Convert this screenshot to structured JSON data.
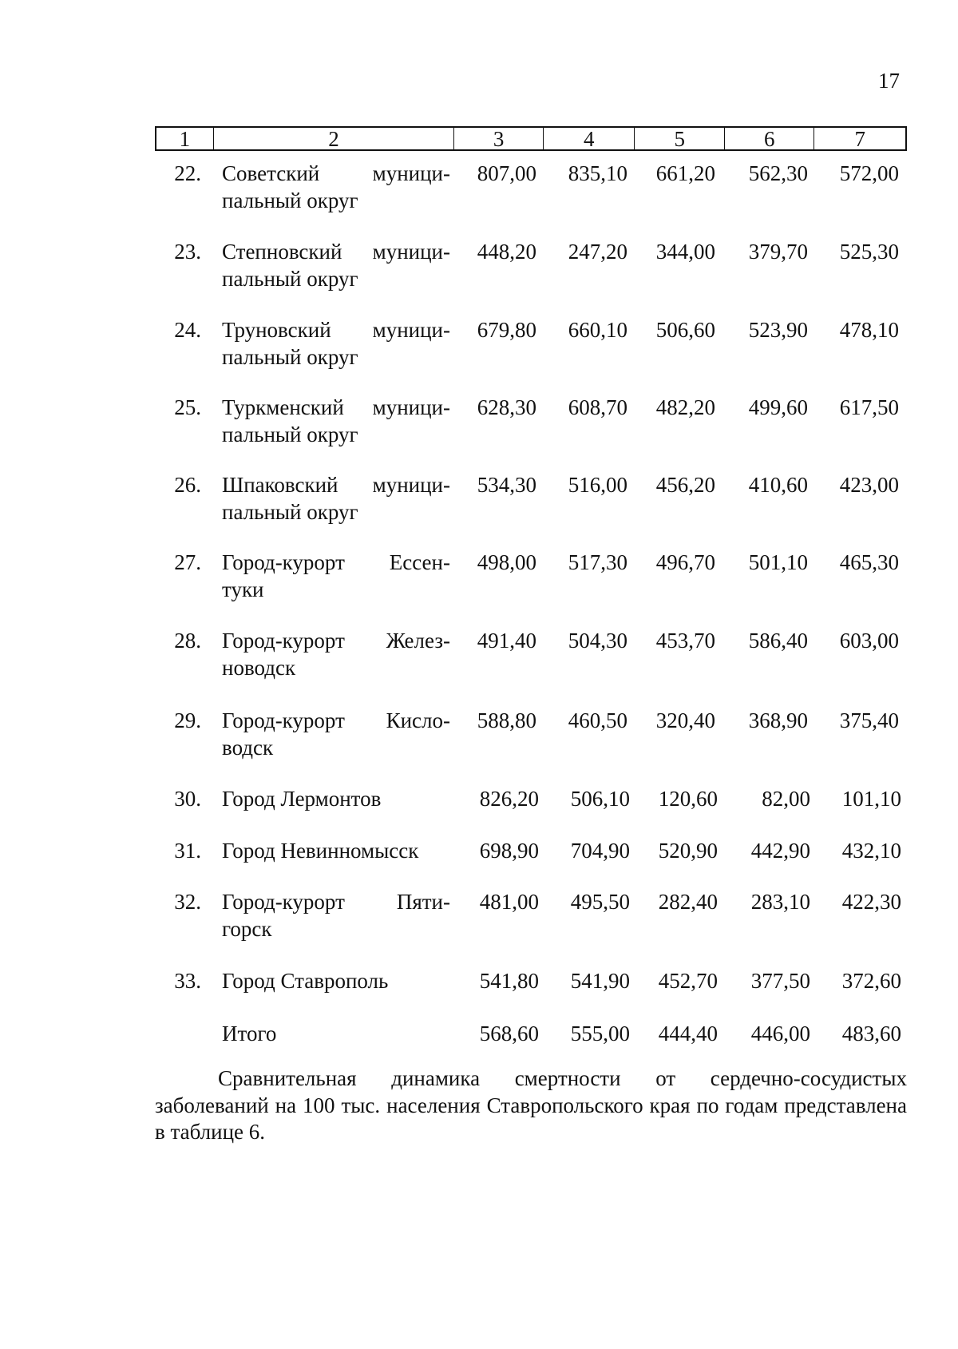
{
  "page_number": "17",
  "table": {
    "header": [
      "1",
      "2",
      "3",
      "4",
      "5",
      "6",
      "7"
    ],
    "rows": [
      {
        "num": "22.",
        "name": [
          "Советский муници-",
          "пальный округ"
        ],
        "values": [
          "807,00",
          "835,10",
          "661,20",
          "562,30",
          "572,00"
        ]
      },
      {
        "num": "23.",
        "name": [
          "Степновский муници-",
          "пальный округ"
        ],
        "values": [
          "448,20",
          "247,20",
          "344,00",
          "379,70",
          "525,30"
        ]
      },
      {
        "num": "24.",
        "name": [
          "Труновский муници-",
          "пальный округ"
        ],
        "values": [
          "679,80",
          "660,10",
          "506,60",
          "523,90",
          "478,10"
        ]
      },
      {
        "num": "25.",
        "name": [
          "Туркменский муници-",
          "пальный округ"
        ],
        "values": [
          "628,30",
          "608,70",
          "482,20",
          "499,60",
          "617,50"
        ]
      },
      {
        "num": "26.",
        "name": [
          "Шпаковский муници-",
          "пальный округ"
        ],
        "values": [
          "534,30",
          "516,00",
          "456,20",
          "410,60",
          "423,00"
        ]
      },
      {
        "num": "27.",
        "name": [
          "Город-курорт Ессен-",
          "туки"
        ],
        "values": [
          "498,00",
          "517,30",
          "496,70",
          "501,10",
          "465,30"
        ]
      },
      {
        "num": "28.",
        "name": [
          "Город-курорт Желез-",
          "новодск"
        ],
        "values": [
          "491,40",
          "504,30",
          "453,70",
          "586,40",
          "603,00"
        ]
      },
      {
        "num": "29.",
        "name": [
          "Город-курорт Кисло-",
          "водск"
        ],
        "values": [
          "588,80",
          "460,50",
          "320,40",
          "368,90",
          "375,40"
        ]
      },
      {
        "num": "30.",
        "name": [
          "Город Лермонтов"
        ],
        "values": [
          "826,20",
          "506,10",
          "120,60",
          "82,00",
          "101,10"
        ]
      },
      {
        "num": "31.",
        "name": [
          "Город Невинномысск"
        ],
        "values": [
          "698,90",
          "704,90",
          "520,90",
          "442,90",
          "432,10"
        ]
      },
      {
        "num": "32.",
        "name": [
          "Город-курорт Пяти-",
          "горск"
        ],
        "values": [
          "481,00",
          "495,50",
          "282,40",
          "283,10",
          "422,30"
        ]
      },
      {
        "num": "33.",
        "name": [
          "Город Ставрополь"
        ],
        "values": [
          "541,80",
          "541,90",
          "452,70",
          "377,50",
          "372,60"
        ]
      },
      {
        "num": "",
        "name": [
          "Итого"
        ],
        "values": [
          "568,60",
          "555,00",
          "444,40",
          "446,00",
          "483,60"
        ]
      }
    ]
  },
  "paragraph": "Сравнительная динамика смертности от сердечно-сосудистых заболеваний на 100 тыс. населения Ставропольского края по годам представлена в таблице 6."
}
